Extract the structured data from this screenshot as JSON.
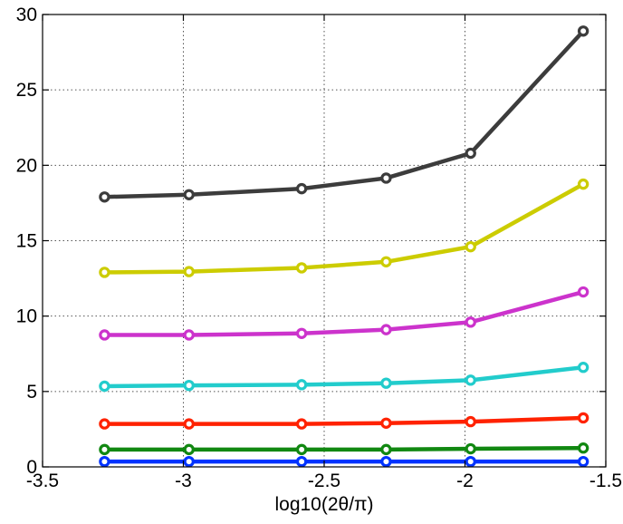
{
  "chart_data": {
    "type": "line",
    "title": "",
    "xlabel": "log10(2θ/π)",
    "ylabel": "",
    "xlim": [
      -3.5,
      -1.5
    ],
    "ylim": [
      0,
      30
    ],
    "xticks": [
      -3.5,
      -3,
      -2.5,
      -2,
      -1.5
    ],
    "yticks": [
      0,
      5,
      10,
      15,
      20,
      25,
      30
    ],
    "xtick_labels": [
      "-3.5",
      "-3",
      "-2.5",
      "-2",
      "-1.5"
    ],
    "ytick_labels": [
      "0",
      "5",
      "10",
      "15",
      "20",
      "25",
      "30"
    ],
    "grid": true,
    "grid_style": "dotted",
    "legend": "none",
    "x": [
      -3.28,
      -2.98,
      -2.58,
      -2.28,
      -1.98,
      -1.58
    ],
    "series": [
      {
        "color": "#0033ff",
        "values": [
          0.35,
          0.35,
          0.35,
          0.35,
          0.35,
          0.35
        ]
      },
      {
        "color": "#118811",
        "values": [
          1.15,
          1.15,
          1.15,
          1.15,
          1.2,
          1.25
        ]
      },
      {
        "color": "#ff2200",
        "values": [
          2.85,
          2.85,
          2.85,
          2.9,
          3.0,
          3.25
        ]
      },
      {
        "color": "#22cccc",
        "values": [
          5.35,
          5.4,
          5.45,
          5.55,
          5.75,
          6.6
        ]
      },
      {
        "color": "#cc33cc",
        "values": [
          8.75,
          8.75,
          8.85,
          9.1,
          9.6,
          11.6
        ]
      },
      {
        "color": "#cccc00",
        "values": [
          12.9,
          12.95,
          13.2,
          13.6,
          14.6,
          18.75
        ]
      },
      {
        "color": "#3c3c3c",
        "values": [
          17.9,
          18.05,
          18.45,
          19.15,
          20.8,
          28.9
        ]
      }
    ]
  }
}
